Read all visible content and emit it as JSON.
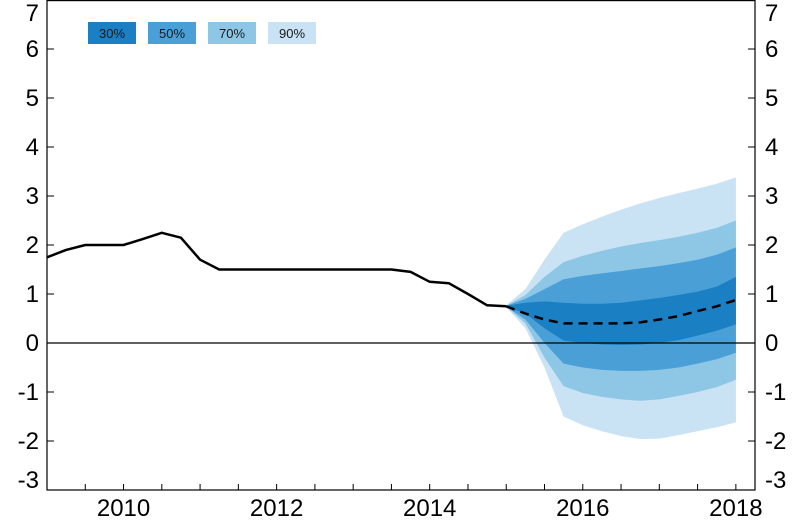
{
  "chart_data": {
    "type": "area",
    "title": "",
    "xlabel": "",
    "ylabel": "",
    "x_ticks": [
      "2010",
      "2012",
      "2014",
      "2016",
      "2018"
    ],
    "y_ticks": [
      "-3",
      "-2",
      "-1",
      "0",
      "1",
      "2",
      "3",
      "4",
      "5",
      "6",
      "7"
    ],
    "ylim": [
      -3,
      7
    ],
    "xlim": [
      2009.5,
      2018.75
    ],
    "grid": false,
    "legend_position": "top-left",
    "legend": [
      {
        "label": "30%",
        "color": "#1b7fc4"
      },
      {
        "label": "50%",
        "color": "#4aa0d6"
      },
      {
        "label": "70%",
        "color": "#8ec6e6"
      },
      {
        "label": "90%",
        "color": "#c9e2f4"
      }
    ],
    "series": [
      {
        "style": "solid",
        "color": "#000000",
        "points": [
          [
            2009.5,
            1.75
          ],
          [
            2009.75,
            1.9
          ],
          [
            2010.0,
            2.0
          ],
          [
            2010.25,
            2.0
          ],
          [
            2010.5,
            2.0
          ],
          [
            2010.75,
            2.12
          ],
          [
            2011.0,
            2.25
          ],
          [
            2011.25,
            2.15
          ],
          [
            2011.5,
            1.7
          ],
          [
            2011.75,
            1.5
          ],
          [
            2012.0,
            1.5
          ],
          [
            2012.25,
            1.5
          ],
          [
            2012.5,
            1.5
          ],
          [
            2012.75,
            1.5
          ],
          [
            2013.0,
            1.5
          ],
          [
            2013.25,
            1.5
          ],
          [
            2013.5,
            1.5
          ],
          [
            2013.75,
            1.5
          ],
          [
            2014.0,
            1.5
          ],
          [
            2014.25,
            1.45
          ],
          [
            2014.5,
            1.25
          ],
          [
            2014.75,
            1.22
          ],
          [
            2015.0,
            1.0
          ],
          [
            2015.25,
            0.77
          ],
          [
            2015.5,
            0.75
          ]
        ]
      },
      {
        "style": "dashed",
        "color": "#000000",
        "points": [
          [
            2015.5,
            0.75
          ],
          [
            2015.75,
            0.6
          ],
          [
            2016.0,
            0.48
          ],
          [
            2016.25,
            0.4
          ],
          [
            2016.5,
            0.4
          ],
          [
            2016.75,
            0.4
          ],
          [
            2017.0,
            0.4
          ],
          [
            2017.25,
            0.42
          ],
          [
            2017.5,
            0.48
          ],
          [
            2017.75,
            0.55
          ],
          [
            2018.0,
            0.65
          ],
          [
            2018.25,
            0.75
          ],
          [
            2018.5,
            0.88
          ]
        ]
      }
    ],
    "fan_x": [
      2015.5,
      2015.75,
      2016.0,
      2016.25,
      2016.5,
      2016.75,
      2017.0,
      2017.25,
      2017.5,
      2017.75,
      2018.0,
      2018.25,
      2018.5
    ],
    "fan_bands": [
      {
        "name": "90%",
        "color": "#c9e2f4",
        "upper": [
          0.77,
          1.1,
          1.7,
          2.25,
          2.42,
          2.58,
          2.72,
          2.85,
          2.96,
          3.06,
          3.15,
          3.25,
          3.38
        ],
        "lower": [
          0.73,
          0.3,
          -0.5,
          -1.5,
          -1.68,
          -1.8,
          -1.9,
          -1.96,
          -1.95,
          -1.88,
          -1.8,
          -1.72,
          -1.62
        ]
      },
      {
        "name": "70%",
        "color": "#8ec6e6",
        "upper": [
          0.76,
          0.98,
          1.35,
          1.65,
          1.78,
          1.88,
          1.97,
          2.04,
          2.1,
          2.17,
          2.25,
          2.35,
          2.5
        ],
        "lower": [
          0.74,
          0.4,
          -0.3,
          -0.88,
          -1.02,
          -1.1,
          -1.15,
          -1.18,
          -1.15,
          -1.08,
          -1.0,
          -0.9,
          -0.75
        ]
      },
      {
        "name": "50%",
        "color": "#4aa0d6",
        "upper": [
          0.76,
          0.9,
          1.1,
          1.3,
          1.37,
          1.42,
          1.47,
          1.52,
          1.57,
          1.63,
          1.7,
          1.8,
          1.95
        ],
        "lower": [
          0.74,
          0.48,
          0.0,
          -0.42,
          -0.5,
          -0.55,
          -0.57,
          -0.57,
          -0.55,
          -0.5,
          -0.42,
          -0.33,
          -0.2
        ]
      },
      {
        "name": "30%",
        "color": "#1b7fc4",
        "upper": [
          0.76,
          0.82,
          0.85,
          0.82,
          0.8,
          0.8,
          0.82,
          0.87,
          0.92,
          0.98,
          1.05,
          1.15,
          1.35
        ],
        "lower": [
          0.74,
          0.6,
          0.3,
          0.05,
          0.0,
          -0.03,
          -0.04,
          -0.03,
          0.0,
          0.06,
          0.15,
          0.25,
          0.38
        ]
      }
    ]
  }
}
